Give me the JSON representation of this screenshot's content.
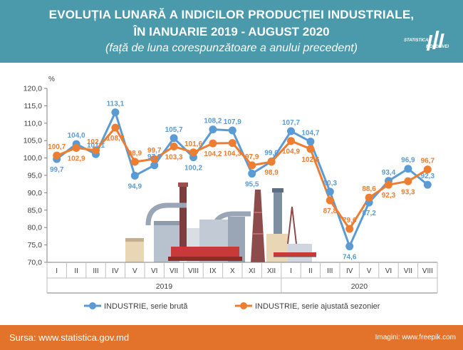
{
  "header": {
    "title_line1": "EVOLUȚIA LUNARĂ A INDICILOR PRODUCȚIEI INDUSTRIALE,",
    "title_line2": "ÎN IANUARIE 2019 - AUGUST 2020",
    "subtitle": "(față de luna corespunzătoare a anului precedent)",
    "logo_line1": "STATISTICA",
    "logo_line2": "MOLDOVEI"
  },
  "footer": {
    "source": "Sursa: www.statistica.gov.md",
    "images": "Imagini: www.freepik.com"
  },
  "colors": {
    "header_bg": "#4a9aab",
    "footer_bg": "#e3722a",
    "series_bruta": "#5b9bd5",
    "series_ajustata": "#ed7d31"
  },
  "chart_data": {
    "type": "line",
    "ylabel": "%",
    "ylim": [
      70,
      120
    ],
    "yticks": [
      "70,0",
      "75,0",
      "80,0",
      "85,0",
      "90,0",
      "95,0",
      "100,0",
      "105,0",
      "110,0",
      "115,0",
      "120,0"
    ],
    "grid": false,
    "legend_position": "bottom",
    "categories": [
      "I",
      "II",
      "III",
      "IV",
      "V",
      "VI",
      "VII",
      "VIII",
      "IX",
      "X",
      "XI",
      "XII",
      "I",
      "II",
      "III",
      "IV",
      "V",
      "VI",
      "VII",
      "VIII"
    ],
    "groups": [
      {
        "label": "2019",
        "from": 0,
        "to": 11
      },
      {
        "label": "2020",
        "from": 12,
        "to": 19
      }
    ],
    "series": [
      {
        "name": "INDUSTRIE, serie brută",
        "values": [
          99.7,
          104.0,
          101.1,
          113.1,
          94.9,
          97.9,
          105.7,
          100.2,
          108.2,
          107.9,
          95.5,
          99.0,
          107.7,
          104.7,
          90.3,
          74.6,
          87.2,
          93.4,
          96.9,
          92.3
        ],
        "labels": [
          "99,7",
          "104,0",
          "101,1",
          "113,1",
          "94,9",
          "97,9",
          "105,7",
          "100,2",
          "108,2",
          "107,9",
          "95,5",
          "99,0",
          "107,7",
          "104,7",
          "90,3",
          "74,6",
          "87,2",
          "93,4",
          "96,9",
          "92,3"
        ]
      },
      {
        "name": "INDUSTRIE, serie ajustată sezonier",
        "values": [
          100.7,
          102.9,
          102.2,
          108.7,
          98.9,
          99.7,
          103.3,
          101.6,
          104.2,
          104.3,
          97.9,
          98.9,
          104.9,
          102.6,
          87.8,
          79.6,
          88.6,
          92.3,
          93.3,
          96.7
        ],
        "labels": [
          "100,7",
          "102,9",
          "102,2",
          "108,7",
          "98,9",
          "99,7",
          "103,3",
          "101,6",
          "104,2",
          "104,3",
          "97,9",
          "98,9",
          "104,9",
          "102,6",
          "87,8",
          "79,6",
          "88,6",
          "92,3",
          "93,3",
          "96,7"
        ]
      }
    ]
  }
}
